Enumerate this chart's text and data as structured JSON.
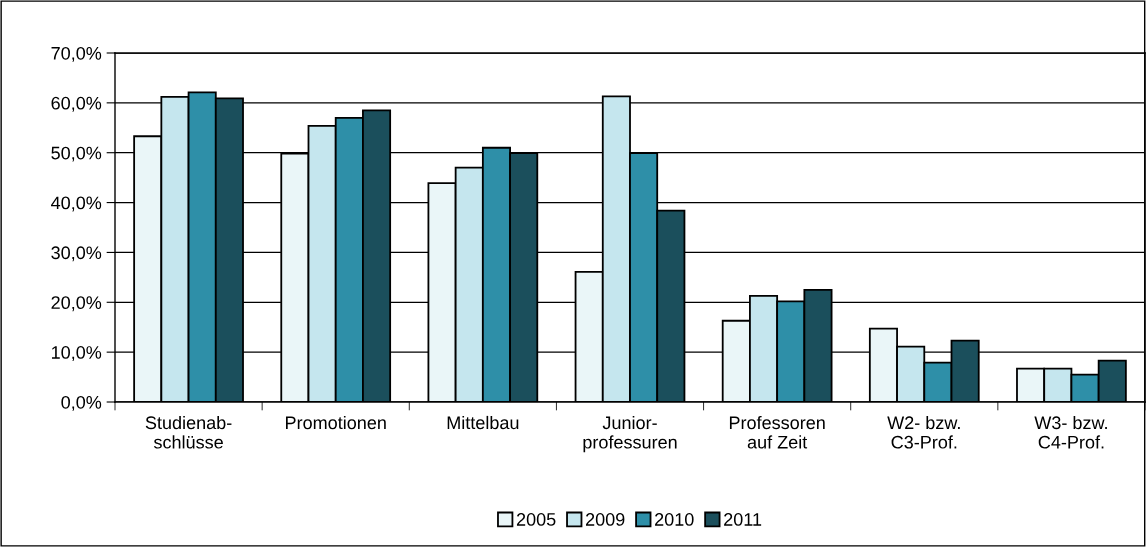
{
  "chart_data": {
    "type": "bar",
    "categories": [
      "Studienab-\nschlüsse",
      "Promotionen",
      "Mittelbau",
      "Junior-\nprofessuren",
      "Professoren\nauf Zeit",
      "W2- bzw.\nC3-Prof.",
      "W3- bzw.\nC4-Prof."
    ],
    "series": [
      {
        "name": "2005",
        "color": "#eaf6f8",
        "values": [
          53.3,
          49.8,
          43.9,
          26.1,
          16.3,
          14.7,
          6.7
        ]
      },
      {
        "name": "2009",
        "color": "#c5e6ee",
        "values": [
          61.2,
          55.4,
          47.0,
          61.3,
          21.3,
          11.1,
          6.7
        ]
      },
      {
        "name": "2010",
        "color": "#2e8fa8",
        "values": [
          62.1,
          57.0,
          51.0,
          49.9,
          20.2,
          7.9,
          5.5
        ]
      },
      {
        "name": "2011",
        "color": "#1b4f5c",
        "values": [
          60.9,
          58.5,
          49.9,
          38.4,
          22.5,
          12.3,
          8.3
        ]
      }
    ],
    "ylim": [
      0,
      70
    ],
    "yticks": [
      {
        "value": 0,
        "label": "0,0%"
      },
      {
        "value": 10,
        "label": "10,0%"
      },
      {
        "value": 20,
        "label": "20,0%"
      },
      {
        "value": 30,
        "label": "30,0%"
      },
      {
        "value": 40,
        "label": "40,0%"
      },
      {
        "value": 50,
        "label": "50,0%"
      },
      {
        "value": 60,
        "label": "60,0%"
      },
      {
        "value": 70,
        "label": "70,0%"
      }
    ],
    "grid": "y",
    "legend": "bottom"
  }
}
